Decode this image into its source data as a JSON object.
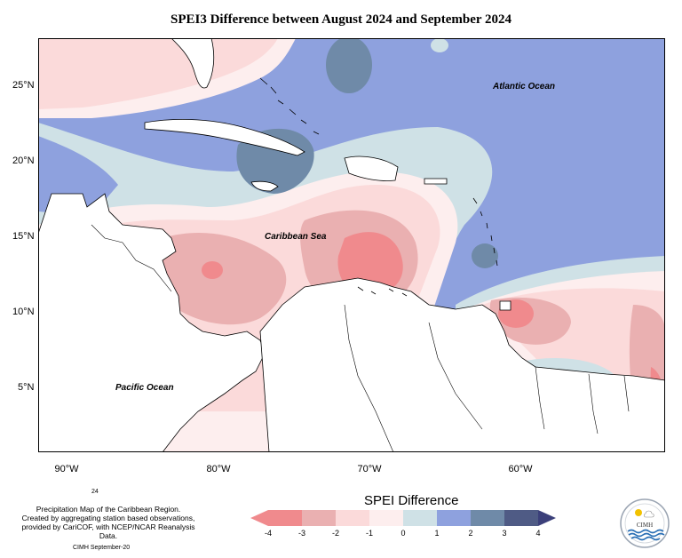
{
  "title": "SPEI3 Difference between August 2024 and September 2024",
  "map": {
    "lat_labels": [
      "25°N",
      "20°N",
      "15°N",
      "10°N",
      "5°N"
    ],
    "lon_labels": [
      "90°W",
      "80°W",
      "70°W",
      "60°W"
    ],
    "ocean_labels": {
      "atlantic": "Atlantic Ocean",
      "caribbean": "Caribbean Sea",
      "pacific": "Pacific Ocean"
    },
    "colors": {
      "dry_strong": "#f08a8d",
      "dry_moderate": "#eab0b1",
      "dry_mild": "#fbdada",
      "neutral_low": "#fdeeee",
      "neutral_high": "#cfe1e6",
      "wet_mild": "#8ea1de",
      "wet_moderate": "#6f8aa8",
      "wet_strong": "#4f5b85"
    }
  },
  "legend": {
    "title": "SPEI Difference",
    "ticks": [
      "-4",
      "-3",
      "-2",
      "-1",
      "0",
      "1",
      "2",
      "3",
      "4"
    ]
  },
  "credit": {
    "number": "24",
    "lines": [
      "Precipitation Map of the Caribbean Region.",
      "Created by aggregating station based observations,",
      "provided by CariCOF, with NCEP/NCAR Reanalysis Data."
    ],
    "footer": "CIMH September-20"
  },
  "logo": {
    "text": "CIMH"
  }
}
